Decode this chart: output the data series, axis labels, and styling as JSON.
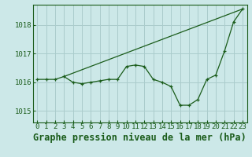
{
  "title": "Graphe pression niveau de la mer (hPa)",
  "background_color": "#cce8e8",
  "grid_color": "#aacccc",
  "line_color": "#1a5c1a",
  "xlim": [
    -0.5,
    23.5
  ],
  "ylim": [
    1014.6,
    1018.7
  ],
  "xticks": [
    0,
    1,
    2,
    3,
    4,
    5,
    6,
    7,
    8,
    9,
    10,
    11,
    12,
    13,
    14,
    15,
    16,
    17,
    18,
    19,
    20,
    21,
    22,
    23
  ],
  "yticks": [
    1015,
    1016,
    1017,
    1018
  ],
  "series1_x": [
    0,
    1,
    2,
    3,
    4,
    5,
    6,
    7,
    8,
    9,
    10,
    11,
    12,
    13,
    14,
    15,
    16,
    17,
    18,
    19,
    20,
    21,
    22,
    23
  ],
  "series1_y": [
    1016.1,
    1016.1,
    1016.1,
    1016.2,
    1016.0,
    1015.95,
    1016.0,
    1016.05,
    1016.1,
    1016.1,
    1016.55,
    1016.6,
    1016.55,
    1016.1,
    1016.0,
    1015.85,
    1015.2,
    1015.2,
    1015.4,
    1016.1,
    1016.25,
    1017.1,
    1018.1,
    1018.55
  ],
  "series2_x": [
    3,
    23
  ],
  "series2_y": [
    1016.2,
    1018.55
  ],
  "title_fontsize": 8.5,
  "tick_fontsize": 6.5
}
